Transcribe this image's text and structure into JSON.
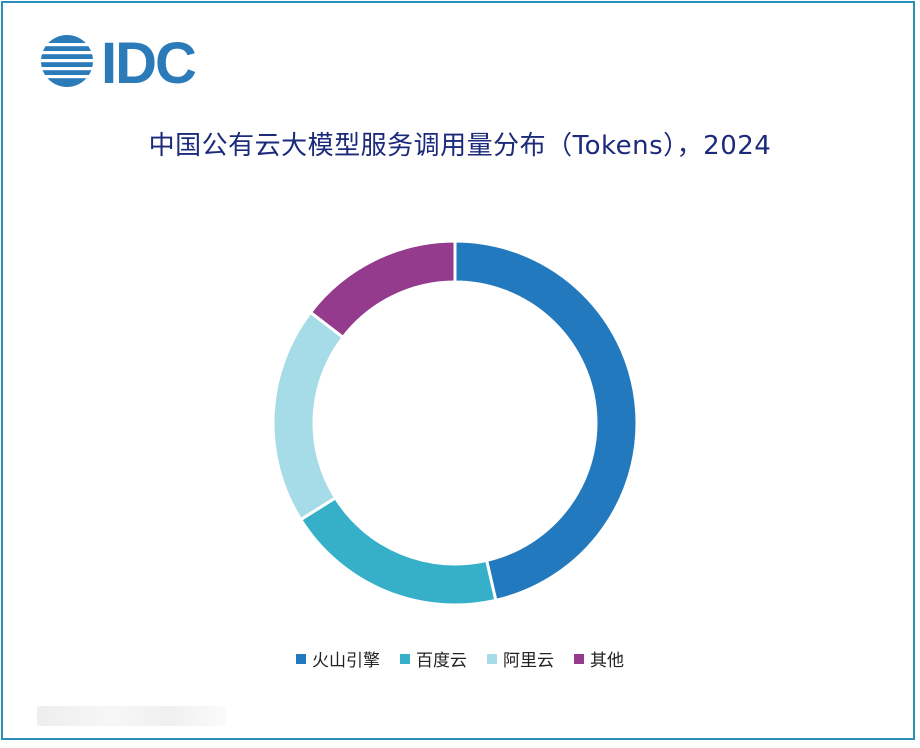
{
  "logo": {
    "text": "IDC",
    "color": "#2b7bb9"
  },
  "chart_data": {
    "type": "pie",
    "title": "中国公有云大模型服务调用量分布（Tokens），2024",
    "donut": true,
    "legend_position": "bottom",
    "series": [
      {
        "name": "火山引擎",
        "value": 46.4,
        "color": "#2379bd"
      },
      {
        "name": "百度云",
        "value": 19.7,
        "color": "#35b0c8"
      },
      {
        "name": "阿里云",
        "value": 19.3,
        "color": "#a6dbe8"
      },
      {
        "name": "其他",
        "value": 14.6,
        "color": "#943b8e"
      }
    ]
  }
}
